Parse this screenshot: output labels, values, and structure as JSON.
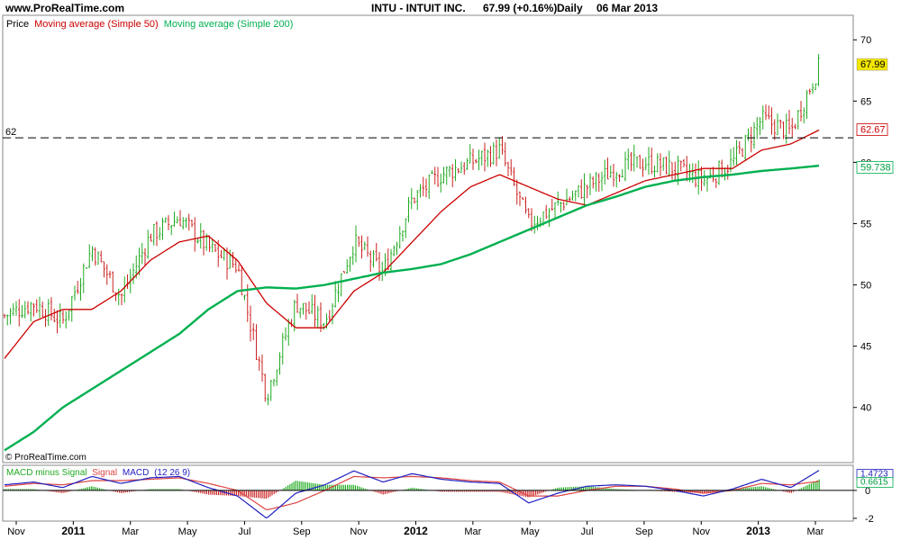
{
  "header": {
    "site": "www.ProRealTime.com",
    "symbol": "INTU - INTUIT INC.",
    "price": "67.99 (+0.16%)",
    "period": "Daily",
    "date": "06 Mar 2013"
  },
  "legend": {
    "price": "Price",
    "ma50": "Moving average (Simple 50)",
    "ma200": "Moving average (Simple 200)"
  },
  "macd_legend": {
    "hist": "MACD minus Signal",
    "signal": "Signal",
    "macd": "MACD",
    "params": "(12 26 9)"
  },
  "watermark": "© ProRealTime.com",
  "colors": {
    "up": "#22aa22",
    "down": "#cc2222",
    "ma50": "#cc0000",
    "ma200": "#00b050",
    "macd": "#2020c0",
    "signal": "#dd4444",
    "badge_price": "#f2e600"
  },
  "chart_data": [
    {
      "type": "line",
      "subtype": "candlestick",
      "title": "INTU - INTUIT INC.",
      "ylim": [
        35.5,
        72
      ],
      "y_ticks": [
        40,
        45,
        50,
        55,
        60,
        65,
        70
      ],
      "x_ticks": [
        "Nov",
        "2011",
        "Mar",
        "May",
        "Jul",
        "Sep",
        "Nov",
        "2012",
        "Mar",
        "May",
        "Jul",
        "Sep",
        "Nov",
        "2013",
        "Mar"
      ],
      "x": [
        "2010-11",
        "2010-12",
        "2011-01",
        "2011-02",
        "2011-03",
        "2011-04",
        "2011-05",
        "2011-06",
        "2011-07",
        "2011-08",
        "2011-09",
        "2011-10",
        "2011-11",
        "2011-12",
        "2012-01",
        "2012-02",
        "2012-03",
        "2012-04",
        "2012-05",
        "2012-06",
        "2012-07",
        "2012-08",
        "2012-09",
        "2012-10",
        "2012-11",
        "2012-12",
        "2013-01",
        "2013-02",
        "2013-03"
      ],
      "series": [
        {
          "name": "Price",
          "values": [
            47.5,
            48.5,
            47.0,
            53.0,
            49.0,
            54.0,
            55.5,
            53.0,
            51.5,
            41.0,
            48.5,
            47.0,
            53.5,
            51.0,
            57.0,
            59.0,
            60.0,
            61.0,
            55.0,
            56.5,
            58.0,
            59.5,
            60.0,
            59.5,
            58.5,
            60.0,
            63.5,
            62.5,
            67.99
          ]
        },
        {
          "name": "Moving average (Simple 50)",
          "values": [
            44.0,
            47.0,
            48.0,
            48.0,
            49.5,
            52.0,
            53.5,
            54.0,
            52.0,
            48.5,
            46.5,
            46.5,
            49.5,
            51.0,
            53.5,
            56.0,
            58.0,
            59.0,
            58.0,
            57.0,
            56.5,
            57.5,
            58.5,
            59.0,
            59.5,
            59.5,
            61.0,
            61.5,
            62.67
          ]
        },
        {
          "name": "Moving average (Simple 200)",
          "values": [
            36.5,
            38.0,
            40.0,
            41.5,
            43.0,
            44.5,
            46.0,
            48.0,
            49.5,
            49.8,
            49.7,
            50.0,
            50.5,
            51.0,
            51.3,
            51.7,
            52.5,
            53.5,
            54.5,
            55.5,
            56.5,
            57.2,
            58.0,
            58.5,
            58.8,
            59.0,
            59.3,
            59.5,
            59.738
          ]
        }
      ],
      "annotations": [
        {
          "label": "62",
          "value": 62
        },
        {
          "label": "67.99",
          "value": 67.99
        },
        {
          "label": "62.67",
          "value": 62.67
        },
        {
          "label": "59.738",
          "value": 59.738
        }
      ],
      "grid": false,
      "legend": "top-left"
    },
    {
      "type": "line",
      "title": "MACD minus Signal Signal MACD (12 26 9)",
      "y_ticks": [
        0,
        -2
      ],
      "ylim": [
        -2.2,
        1.8
      ],
      "series": [
        {
          "name": "MACD",
          "values": [
            0.4,
            0.6,
            0.2,
            1.0,
            0.5,
            0.9,
            1.0,
            0.2,
            -0.4,
            -2.0,
            -0.2,
            0.4,
            1.4,
            0.6,
            1.2,
            0.8,
            0.6,
            0.5,
            -0.9,
            -0.2,
            0.3,
            0.4,
            0.3,
            0.0,
            -0.4,
            0.1,
            0.8,
            0.2,
            1.4723
          ]
        },
        {
          "name": "Signal",
          "values": [
            0.3,
            0.5,
            0.4,
            0.7,
            0.7,
            0.8,
            0.9,
            0.5,
            0.0,
            -1.4,
            -0.9,
            0.0,
            1.0,
            0.9,
            1.0,
            0.9,
            0.7,
            0.6,
            -0.4,
            -0.4,
            0.0,
            0.3,
            0.3,
            0.1,
            -0.2,
            0.0,
            0.5,
            0.4,
            0.6615
          ]
        }
      ],
      "annotations": [
        {
          "label": "1.4723",
          "value": 1.4723
        },
        {
          "label": "0.6615",
          "value": 0.6615
        }
      ],
      "legend": "top-left"
    }
  ]
}
